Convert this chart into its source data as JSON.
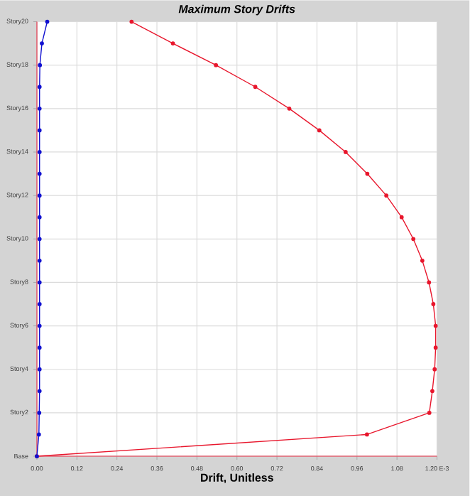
{
  "chart_data": {
    "type": "line",
    "title": "Maximum Story Drifts",
    "xlabel": "Drift, Unitless",
    "categories": [
      "Story20",
      null,
      "Story18",
      null,
      "Story16",
      null,
      "Story14",
      null,
      "Story12",
      null,
      "Story10",
      null,
      "Story8",
      null,
      "Story6",
      null,
      "Story4",
      null,
      "Story2",
      null,
      "Base"
    ],
    "series": [
      {
        "color": "#e8162c",
        "values": [
          0.284,
          0.408,
          0.537,
          0.655,
          0.757,
          0.847,
          0.926,
          0.991,
          1.048,
          1.094,
          1.129,
          1.156,
          1.176,
          1.189,
          1.196,
          1.196,
          1.193,
          1.186,
          1.177,
          0.99,
          0
        ]
      },
      {
        "color": "#1010d0",
        "values": [
          0.031,
          0.015,
          0.009,
          0.008,
          0.008,
          0.008,
          0.008,
          0.008,
          0.008,
          0.008,
          0.008,
          0.008,
          0.008,
          0.008,
          0.008,
          0.008,
          0.008,
          0.008,
          0.007,
          0.006,
          0
        ]
      }
    ],
    "orientation": "horizontal",
    "xlim": [
      0,
      1.2
    ],
    "xticks": [
      {
        "value": 0,
        "label": "0.00"
      },
      {
        "value": 0.12,
        "label": "0.12"
      },
      {
        "value": 0.24,
        "label": "0.24"
      },
      {
        "value": 0.36,
        "label": "0.36"
      },
      {
        "value": 0.48,
        "label": "0.48"
      },
      {
        "value": 0.6,
        "label": "0.60"
      },
      {
        "value": 0.72,
        "label": "0.72"
      },
      {
        "value": 0.84,
        "label": "0.84"
      },
      {
        "value": 0.96,
        "label": "0.96"
      },
      {
        "value": 1.08,
        "label": "1.08"
      },
      {
        "value": 1.2,
        "label": "1.20 E-3"
      }
    ],
    "grid": true,
    "marker": "circle",
    "line_style": "solid"
  }
}
